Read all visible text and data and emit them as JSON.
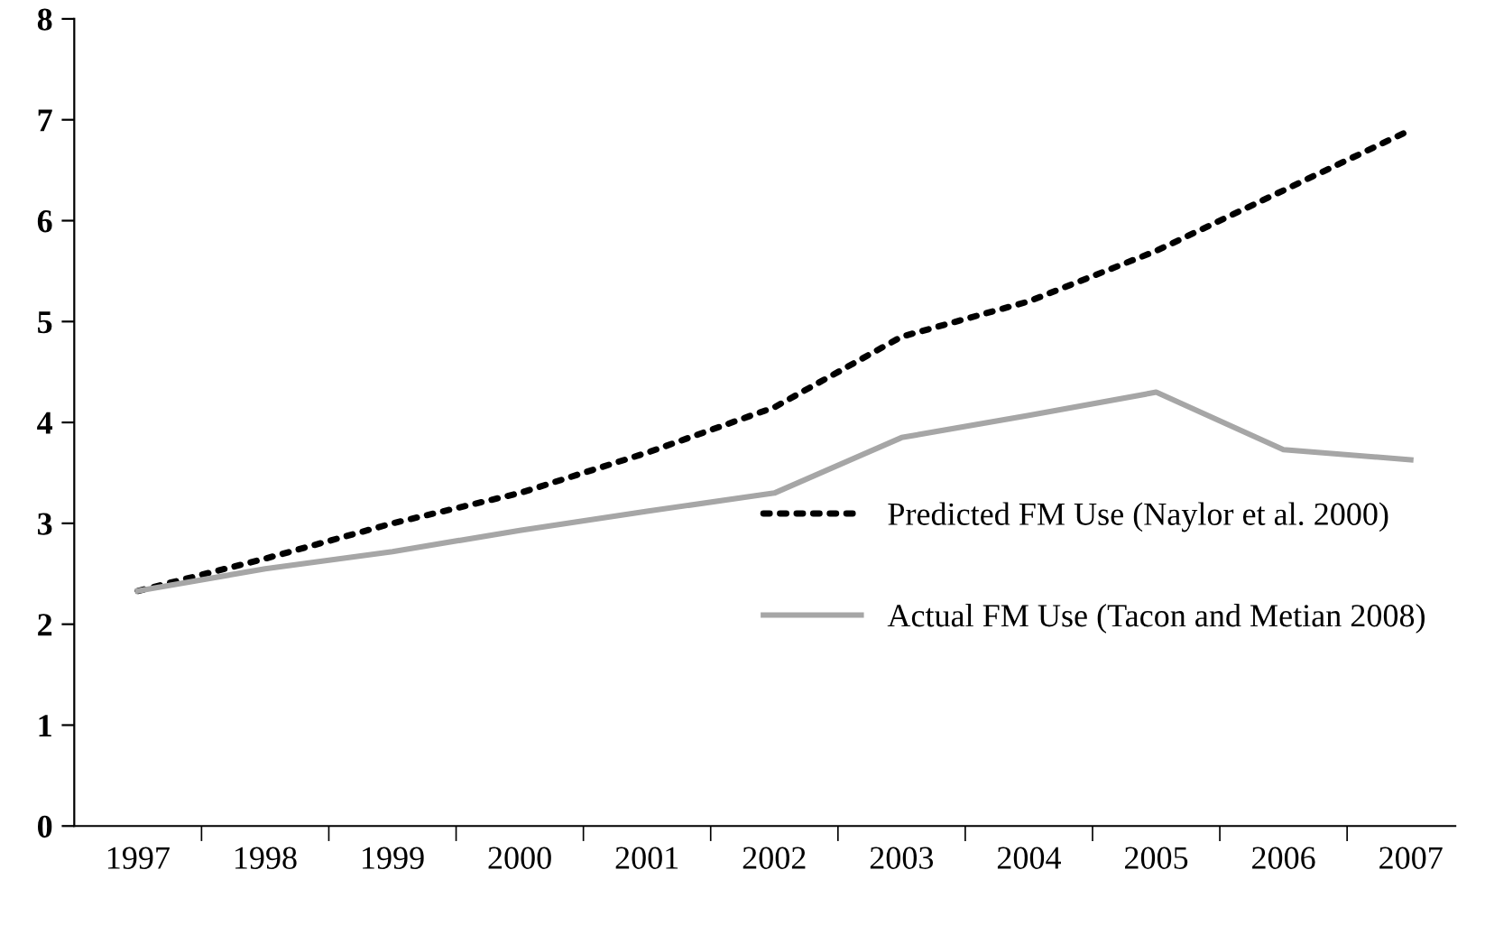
{
  "chart_data": {
    "type": "line",
    "categories": [
      "1997",
      "1998",
      "1999",
      "2000",
      "2001",
      "2002",
      "2003",
      "2004",
      "2005",
      "2006",
      "2007"
    ],
    "series": [
      {
        "name": "Predicted FM Use (Naylor et al. 2000)",
        "color": "#000000",
        "line_style": "dotted",
        "values": [
          2.33,
          2.65,
          3.0,
          3.3,
          3.7,
          4.15,
          4.85,
          5.2,
          5.7,
          6.3,
          6.9
        ]
      },
      {
        "name": "Actual FM Use (Tacon and Metian 2008)",
        "color": "#a6a6a6",
        "line_style": "solid",
        "values": [
          2.33,
          2.55,
          2.72,
          2.93,
          3.12,
          3.3,
          3.85,
          4.07,
          4.3,
          3.73,
          3.63
        ]
      }
    ],
    "ylim": [
      0,
      8
    ],
    "yticks": [
      0,
      1,
      2,
      3,
      4,
      5,
      6,
      7,
      8
    ],
    "grid": false,
    "legend": "right",
    "marker": "none"
  }
}
